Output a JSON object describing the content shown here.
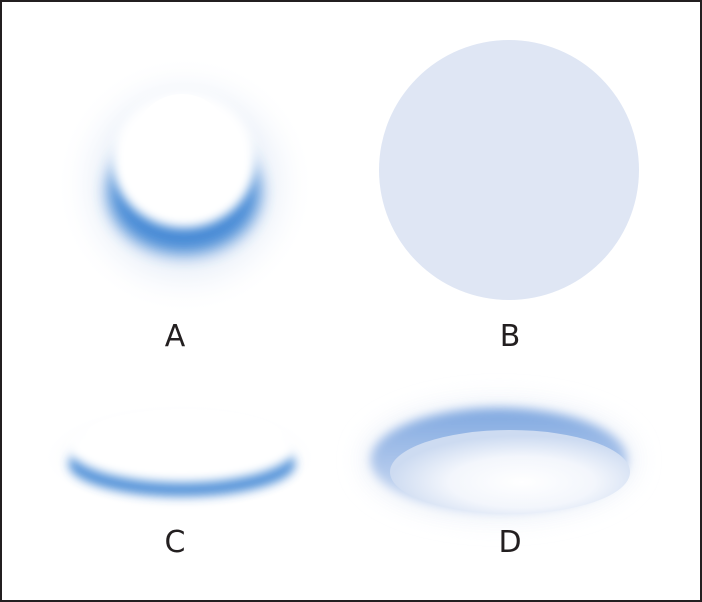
{
  "labels": {
    "a": "A",
    "b": "B",
    "c": "C",
    "d": "D"
  },
  "colors": {
    "border": "#231f20",
    "text": "#231f20",
    "blue_dark": "#3f86d4",
    "blue_light": "#dfe6f4",
    "white": "#ffffff"
  }
}
